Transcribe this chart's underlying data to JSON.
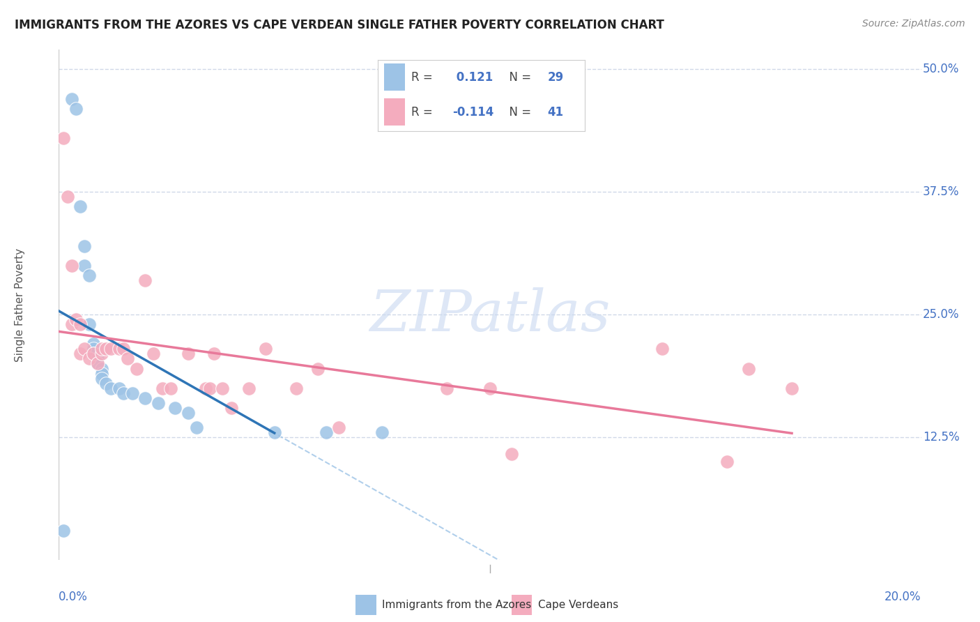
{
  "title": "IMMIGRANTS FROM THE AZORES VS CAPE VERDEAN SINGLE FATHER POVERTY CORRELATION CHART",
  "source": "Source: ZipAtlas.com",
  "ylabel": "Single Father Poverty",
  "legend_label_azores": "Immigrants from the Azores",
  "legend_label_cape": "Cape Verdeans",
  "ytick_vals": [
    0.125,
    0.25,
    0.375,
    0.5
  ],
  "ytick_labels": [
    "12.5%",
    "25.0%",
    "37.5%",
    "50.0%"
  ],
  "xmin": 0.0,
  "xmax": 0.2,
  "ymin": 0.0,
  "ymax": 0.52,
  "r_azores": 0.121,
  "n_azores": 29,
  "r_cape": -0.114,
  "n_cape": 41,
  "color_azores": "#9DC3E6",
  "color_cape": "#F4ACBE",
  "trendline_azores_color": "#2E75B6",
  "trendline_cape_color": "#E8799A",
  "dashed_line_color": "#9DC3E6",
  "watermark": "ZIPatlas",
  "watermark_color": "#C8D8F0",
  "azores_x": [
    0.001,
    0.003,
    0.004,
    0.005,
    0.006,
    0.006,
    0.007,
    0.007,
    0.008,
    0.008,
    0.008,
    0.009,
    0.009,
    0.01,
    0.01,
    0.01,
    0.011,
    0.012,
    0.014,
    0.015,
    0.017,
    0.02,
    0.023,
    0.027,
    0.03,
    0.032,
    0.05,
    0.062,
    0.075
  ],
  "azores_y": [
    0.03,
    0.47,
    0.46,
    0.36,
    0.32,
    0.3,
    0.29,
    0.24,
    0.22,
    0.215,
    0.21,
    0.205,
    0.2,
    0.195,
    0.19,
    0.185,
    0.18,
    0.175,
    0.175,
    0.17,
    0.17,
    0.165,
    0.16,
    0.155,
    0.15,
    0.135,
    0.13,
    0.13,
    0.13
  ],
  "cape_x": [
    0.001,
    0.002,
    0.003,
    0.003,
    0.004,
    0.005,
    0.005,
    0.006,
    0.007,
    0.008,
    0.009,
    0.01,
    0.01,
    0.011,
    0.012,
    0.014,
    0.015,
    0.016,
    0.018,
    0.02,
    0.022,
    0.024,
    0.026,
    0.03,
    0.034,
    0.035,
    0.036,
    0.038,
    0.04,
    0.044,
    0.048,
    0.055,
    0.06,
    0.065,
    0.09,
    0.1,
    0.105,
    0.14,
    0.155,
    0.16,
    0.17
  ],
  "cape_y": [
    0.43,
    0.37,
    0.3,
    0.24,
    0.245,
    0.24,
    0.21,
    0.215,
    0.205,
    0.21,
    0.2,
    0.21,
    0.215,
    0.215,
    0.215,
    0.215,
    0.215,
    0.205,
    0.195,
    0.285,
    0.21,
    0.175,
    0.175,
    0.21,
    0.175,
    0.175,
    0.21,
    0.175,
    0.155,
    0.175,
    0.215,
    0.175,
    0.195,
    0.135,
    0.175,
    0.175,
    0.108,
    0.215,
    0.1,
    0.195,
    0.175
  ]
}
